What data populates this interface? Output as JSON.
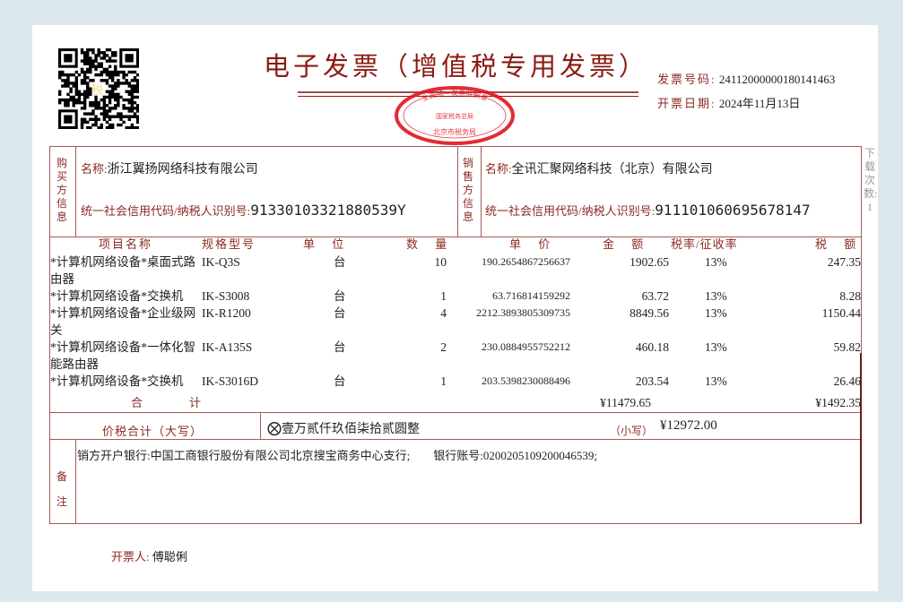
{
  "invoice": {
    "title": "电子发票（增值税专用发票）",
    "number_label": "发票号码:",
    "number": "24112000000180141463",
    "date_label": "开票日期:",
    "date": "2024年11月13日",
    "qr_center_text": "税",
    "download_count": "下载次数: 1",
    "stamp": {
      "top": "全国统一发票监制章",
      "middle": "国家税务总局",
      "bottom": "北京市税务局",
      "color": "#e0141e"
    }
  },
  "buyer": {
    "section_label": "购买方信息",
    "name_label": "名称:",
    "name": "浙江翼扬网络科技有限公司",
    "taxid_label": "统一社会信用代码/纳税人识别号:",
    "taxid": "91330103321880539Y"
  },
  "seller": {
    "section_label": "销售方信息",
    "name_label": "名称:",
    "name": "全讯汇聚网络科技（北京）有限公司",
    "taxid_label": "统一社会信用代码/纳税人识别号:",
    "taxid": "91110106069567814​7"
  },
  "columns": {
    "name": "项目名称",
    "spec": "规格型号",
    "unit": "单 位",
    "qty": "数 量",
    "price": "单 价",
    "amount": "金 额",
    "rate": "税率/征收率",
    "tax": "税 额"
  },
  "items": [
    {
      "name": "*计算机网络设备*桌面式路由器",
      "spec": "IK-Q3S",
      "unit": "台",
      "qty": "10",
      "price": "190.2654867256637",
      "amount": "1902.65",
      "rate": "13%",
      "tax": "247.35"
    },
    {
      "name": "*计算机网络设备*交换机",
      "spec": "IK-S3008",
      "unit": "台",
      "qty": "1",
      "price": "63.716814159292",
      "amount": "63.72",
      "rate": "13%",
      "tax": "8.28"
    },
    {
      "name": "*计算机网络设备*企业级网关",
      "spec": "IK-R1200",
      "unit": "台",
      "qty": "4",
      "price": "2212.3893805309735",
      "amount": "8849.56",
      "rate": "13%",
      "tax": "1150.44"
    },
    {
      "name": "*计算机网络设备*一体化智能路由器",
      "spec": "IK-A135S",
      "unit": "台",
      "qty": "2",
      "price": "230.0884955752212",
      "amount": "460.18",
      "rate": "13%",
      "tax": "59.82"
    },
    {
      "name": "*计算机网络设备*交换机",
      "spec": "IK-S3016D",
      "unit": "台",
      "qty": "1",
      "price": "203.5398230088496",
      "amount": "203.54",
      "rate": "13%",
      "tax": "26.46"
    }
  ],
  "totals": {
    "label": "合　　　　计",
    "amount": "¥11479.65",
    "tax": "¥1492.35",
    "grand_label": "价税合计（大写）",
    "grand_words": "壹万贰仟玖佰柒拾贰圆整",
    "small_label": "（小写）",
    "grand_number": "¥12972.00"
  },
  "remarks": {
    "label": "备注",
    "text": "销方开户银行:中国工商银行股份有限公司北京搜宝商务中心支行;　　银行账号:0200205109200046539;"
  },
  "issuer": {
    "label": "开票人:",
    "name": "傅聪俐"
  }
}
